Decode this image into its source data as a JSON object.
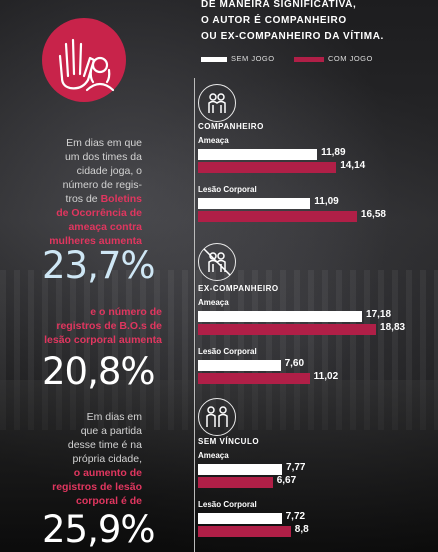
{
  "header": "DE MANEIRA SIGNIFICATIVA,\nO AUTOR É COMPANHEIRO\nOU EX-COMPANHEIRO DA VÍTIMA.",
  "legend": [
    {
      "label": "SEM JOGO",
      "color": "#ffffff"
    },
    {
      "label": "COM JOGO",
      "color": "#b01f47"
    }
  ],
  "left": {
    "intro": "Em dias em que\num dos times da\ncidade joga, o\nnúmero de regis-\ntros de ",
    "intro_hl": "Boletins\nde Ocorrência de\nameaça contra\nmulheres aumenta",
    "stat1": "23,7%",
    "mid": "e o número de\nregistros de B.O.s de\nlesão corporal aumenta",
    "stat2": "20,8%",
    "outro": "Em dias em\nque a partida\ndesse time é na\nprópria cidade,\n",
    "outro_hl": "o aumento de\nregistros de lesão\ncorporal é de",
    "stat3": "25,9%"
  },
  "chart_data": {
    "type": "bar",
    "orientation": "horizontal",
    "series": [
      {
        "name": "SEM JOGO",
        "color": "#ffffff"
      },
      {
        "name": "COM JOGO",
        "color": "#b01f47"
      }
    ],
    "groups": [
      {
        "title": "COMPANHEIRO",
        "icon": "couple-icon",
        "subgroups": [
          {
            "label": "Ameaça",
            "values": [
              "11,89",
              "14,14"
            ]
          },
          {
            "label": "Lesão Corporal",
            "values": [
              "11,09",
              "16,58"
            ]
          }
        ]
      },
      {
        "title": "EX-COMPANHEIRO",
        "icon": "crossed-couple-icon",
        "subgroups": [
          {
            "label": "Ameaça",
            "values": [
              "17,18",
              "18,83"
            ]
          },
          {
            "label": "Lesão Corporal",
            "values": [
              "7,60",
              "11,02"
            ]
          }
        ]
      },
      {
        "title": "SEM VÍNCULO",
        "icon": "people-icon",
        "subgroups": [
          {
            "label": "Ameaça",
            "values": [
              "7,77",
              "6,67"
            ]
          },
          {
            "label": "Lesão Corporal",
            "values": [
              "7,72",
              "8,8"
            ]
          }
        ]
      }
    ]
  }
}
